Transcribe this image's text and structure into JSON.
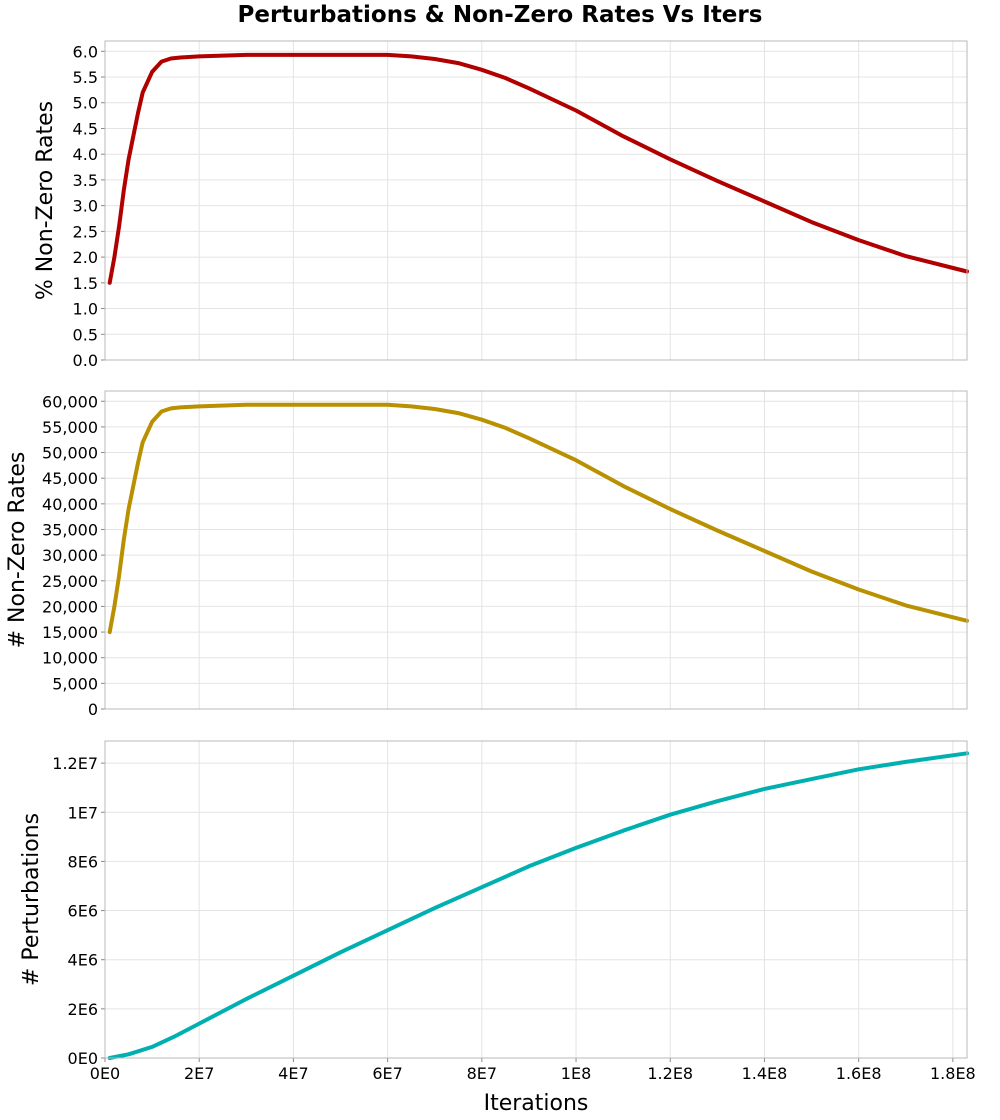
{
  "title": "Perturbations & Non-Zero Rates Vs Iters",
  "chart_data": [
    {
      "type": "line",
      "id": "pct",
      "ylabel": "% Non-Zero Rates",
      "xlabel": "",
      "xlim": [
        0,
        183000000
      ],
      "ylim": [
        0,
        6.2
      ],
      "yticks": [
        0.0,
        0.5,
        1.0,
        1.5,
        2.0,
        2.5,
        3.0,
        3.5,
        4.0,
        4.5,
        5.0,
        5.5,
        6.0
      ],
      "ytick_labels": [
        "0.0",
        "0.5",
        "1.0",
        "1.5",
        "2.0",
        "2.5",
        "3.0",
        "3.5",
        "4.0",
        "4.5",
        "5.0",
        "5.5",
        "6.0"
      ],
      "grid": true,
      "color": "#b00000",
      "series": [
        {
          "name": "% Non-Zero Rates",
          "x": [
            1000000,
            2000000,
            3000000,
            4000000,
            5000000,
            6000000,
            7000000,
            8000000,
            10000000,
            12000000,
            14000000,
            16000000,
            20000000,
            30000000,
            40000000,
            50000000,
            60000000,
            65000000,
            70000000,
            75000000,
            80000000,
            85000000,
            90000000,
            100000000,
            110000000,
            120000000,
            130000000,
            140000000,
            150000000,
            160000000,
            170000000,
            183000000
          ],
          "values": [
            1.5,
            2.0,
            2.6,
            3.3,
            3.9,
            4.35,
            4.8,
            5.2,
            5.6,
            5.8,
            5.86,
            5.88,
            5.9,
            5.93,
            5.93,
            5.93,
            5.93,
            5.9,
            5.85,
            5.77,
            5.64,
            5.48,
            5.28,
            4.85,
            4.35,
            3.9,
            3.48,
            3.08,
            2.68,
            2.33,
            2.02,
            1.72
          ]
        }
      ]
    },
    {
      "type": "line",
      "id": "count",
      "ylabel": "# Non-Zero Rates",
      "xlabel": "",
      "xlim": [
        0,
        183000000
      ],
      "ylim": [
        0,
        62000
      ],
      "yticks": [
        0,
        5000,
        10000,
        15000,
        20000,
        25000,
        30000,
        35000,
        40000,
        45000,
        50000,
        55000,
        60000
      ],
      "ytick_labels": [
        "0",
        "5,000",
        "10,000",
        "15,000",
        "20,000",
        "25,000",
        "30,000",
        "35,000",
        "40,000",
        "45,000",
        "50,000",
        "55,000",
        "60,000"
      ],
      "grid": true,
      "color": "#b89000",
      "series": [
        {
          "name": "# Non-Zero Rates",
          "x": [
            1000000,
            2000000,
            3000000,
            4000000,
            5000000,
            6000000,
            7000000,
            8000000,
            10000000,
            12000000,
            14000000,
            16000000,
            20000000,
            30000000,
            40000000,
            50000000,
            60000000,
            65000000,
            70000000,
            75000000,
            80000000,
            85000000,
            90000000,
            100000000,
            110000000,
            120000000,
            130000000,
            140000000,
            150000000,
            160000000,
            170000000,
            183000000
          ],
          "values": [
            15000,
            20000,
            26000,
            33000,
            39000,
            43500,
            48000,
            52000,
            56000,
            58000,
            58600,
            58800,
            59000,
            59300,
            59300,
            59300,
            59300,
            59000,
            58500,
            57700,
            56400,
            54800,
            52800,
            48500,
            43500,
            39000,
            34800,
            30800,
            26800,
            23300,
            20200,
            17200
          ]
        }
      ]
    },
    {
      "type": "line",
      "id": "perturb",
      "ylabel": "# Perturbations",
      "xlabel": "Iterations",
      "xlim": [
        0,
        183000000
      ],
      "ylim": [
        0,
        12900000
      ],
      "yticks": [
        0,
        2000000,
        4000000,
        6000000,
        8000000,
        10000000,
        12000000
      ],
      "ytick_labels": [
        "0E0",
        "2E6",
        "4E6",
        "6E6",
        "8E6",
        "1E7",
        "1.2E7"
      ],
      "xticks": [
        0,
        20000000,
        40000000,
        60000000,
        80000000,
        100000000,
        120000000,
        140000000,
        160000000,
        180000000
      ],
      "xtick_labels": [
        "0E0",
        "2E7",
        "4E7",
        "6E7",
        "8E7",
        "1E8",
        "1.2E8",
        "1.4E8",
        "1.6E8",
        "1.8E8"
      ],
      "grid": true,
      "color": "#00b0b0",
      "series": [
        {
          "name": "# Perturbations",
          "x": [
            1000000,
            5000000,
            10000000,
            15000000,
            20000000,
            30000000,
            40000000,
            50000000,
            60000000,
            70000000,
            80000000,
            90000000,
            100000000,
            110000000,
            120000000,
            130000000,
            140000000,
            150000000,
            160000000,
            170000000,
            183000000
          ],
          "values": [
            0,
            150000,
            450000,
            900000,
            1400000,
            2400000,
            3350000,
            4300000,
            5200000,
            6100000,
            6950000,
            7800000,
            8550000,
            9250000,
            9900000,
            10450000,
            10950000,
            11350000,
            11750000,
            12050000,
            12400000
          ]
        }
      ]
    }
  ]
}
